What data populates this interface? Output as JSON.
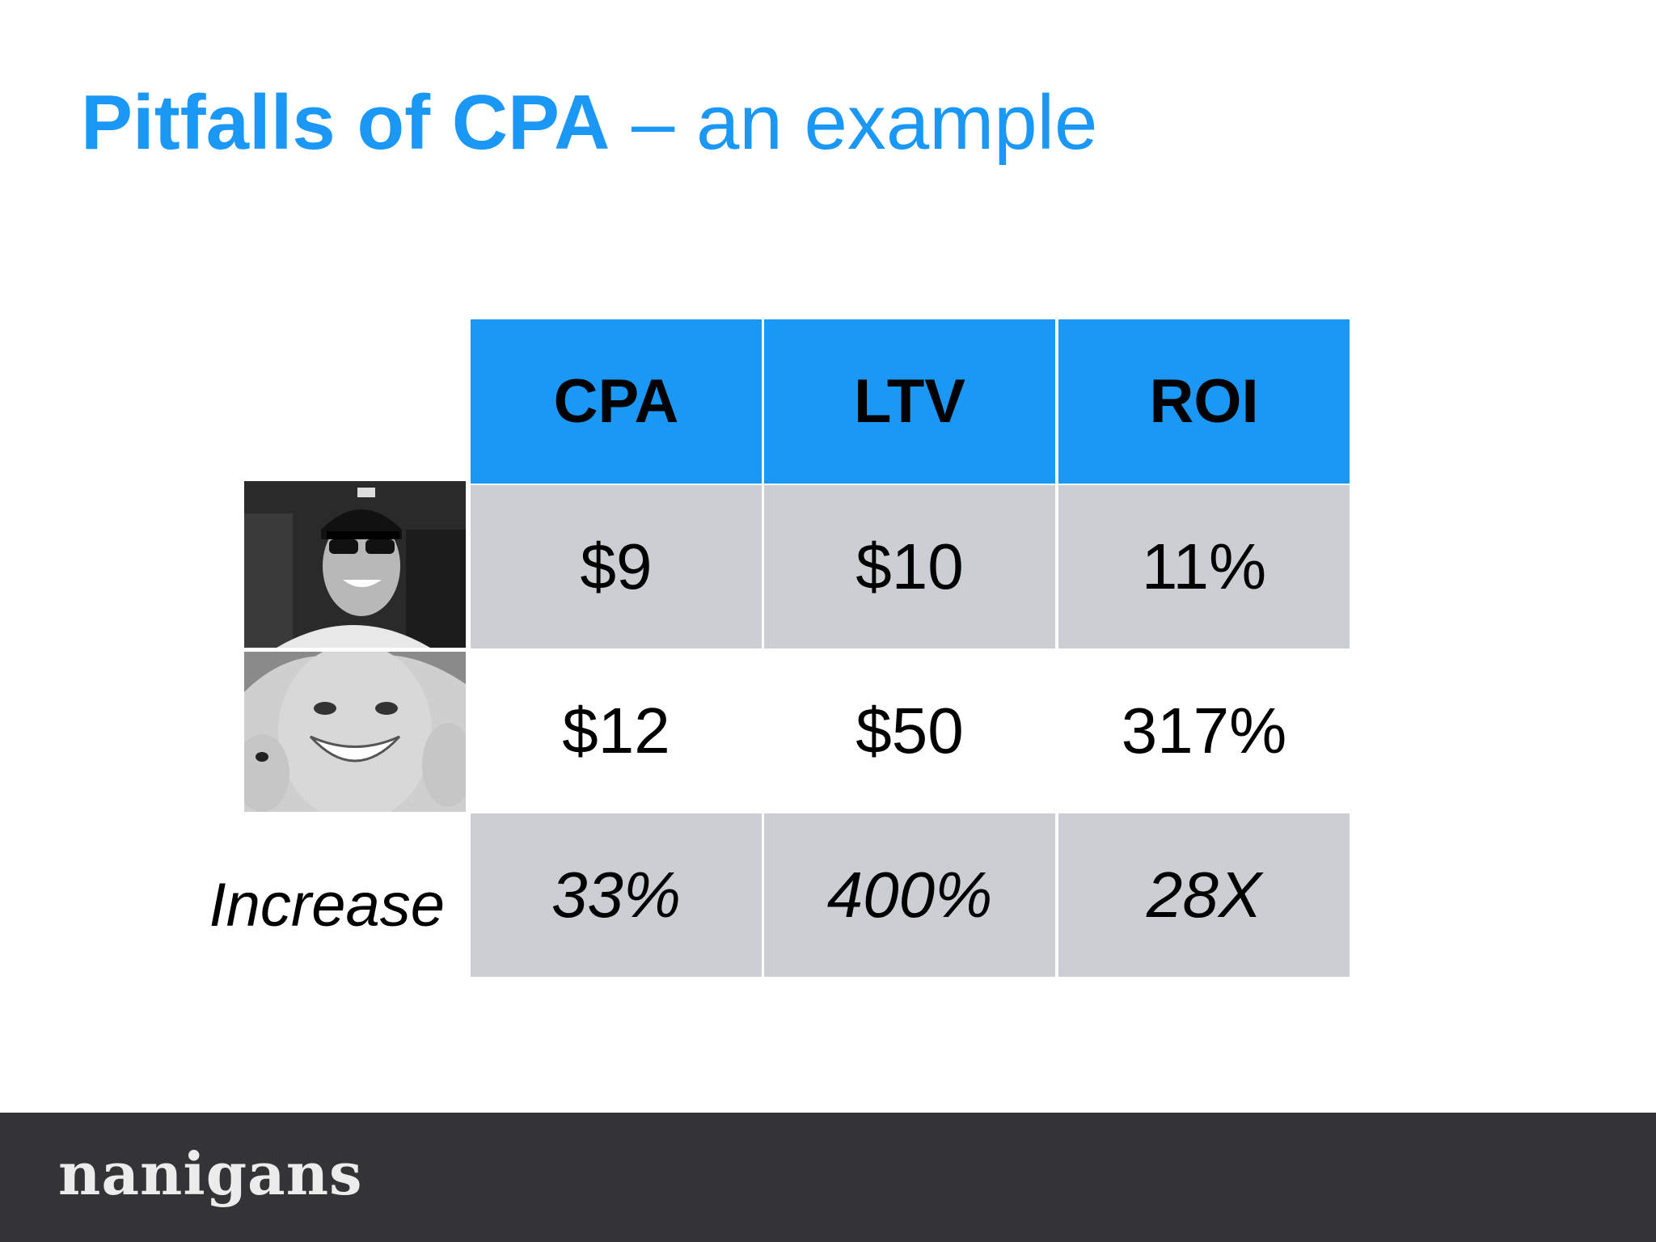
{
  "slide": {
    "title_strong": "Pitfalls of CPA",
    "title_rest": " – an example"
  },
  "table": {
    "headers": [
      "CPA",
      "LTV",
      "ROI"
    ],
    "rows": [
      {
        "values": [
          "$9",
          "$10",
          "11%"
        ]
      },
      {
        "values": [
          "$12",
          "$50",
          "317%"
        ]
      },
      {
        "label": "Increase",
        "values": [
          "33%",
          "400%",
          "28X"
        ]
      }
    ],
    "colors": {
      "header": "#1b97f5",
      "shade": "#cbced2"
    }
  },
  "footer": {
    "logo": "nanigans"
  }
}
